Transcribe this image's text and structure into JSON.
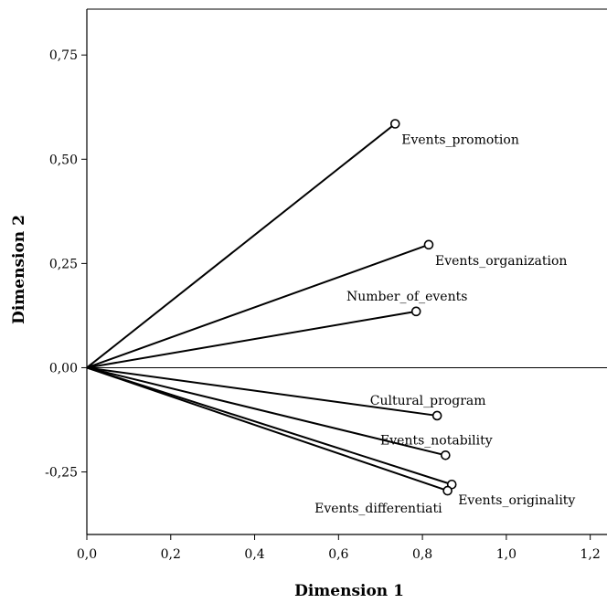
{
  "chart_data": {
    "type": "scatter",
    "xlabel": "Dimension 1",
    "ylabel": "Dimension 2",
    "xlim": [
      0.0,
      1.24
    ],
    "ylim": [
      -0.4,
      0.86
    ],
    "x_ticks": [
      {
        "value": 0.0,
        "label": "0,0"
      },
      {
        "value": 0.2,
        "label": "0,2"
      },
      {
        "value": 0.4,
        "label": "0,4"
      },
      {
        "value": 0.6,
        "label": "0,6"
      },
      {
        "value": 0.8,
        "label": "0,8"
      },
      {
        "value": 1.0,
        "label": "1,0"
      },
      {
        "value": 1.2,
        "label": "1,2"
      }
    ],
    "y_ticks": [
      {
        "value": -0.25,
        "label": "-0,25"
      },
      {
        "value": 0.0,
        "label": "0,00"
      },
      {
        "value": 0.25,
        "label": "0,25"
      },
      {
        "value": 0.5,
        "label": "0,50"
      },
      {
        "value": 0.75,
        "label": "0,75"
      }
    ],
    "reference_line_y": 0.0,
    "origin": {
      "x": 0.0,
      "y": 0.0
    },
    "points": [
      {
        "name": "Events_promotion",
        "x": 0.735,
        "y": 0.585,
        "label_pos": "below-right"
      },
      {
        "name": "Events_organization",
        "x": 0.815,
        "y": 0.295,
        "label_pos": "below-right"
      },
      {
        "name": "Number_of_events",
        "x": 0.785,
        "y": 0.135,
        "label_pos": "above"
      },
      {
        "name": "Cultural_program",
        "x": 0.835,
        "y": -0.115,
        "label_pos": "above"
      },
      {
        "name": "Events_notability",
        "x": 0.855,
        "y": -0.21,
        "label_pos": "above"
      },
      {
        "name": "Events_originality",
        "x": 0.87,
        "y": -0.28,
        "label_pos": "below-right"
      },
      {
        "name": "Events_differentiati",
        "x": 0.86,
        "y": -0.295,
        "label_pos": "below-left"
      }
    ],
    "grid": false,
    "colors": {
      "line": "#000000",
      "axis": "#000000",
      "background": "#ffffff"
    }
  }
}
